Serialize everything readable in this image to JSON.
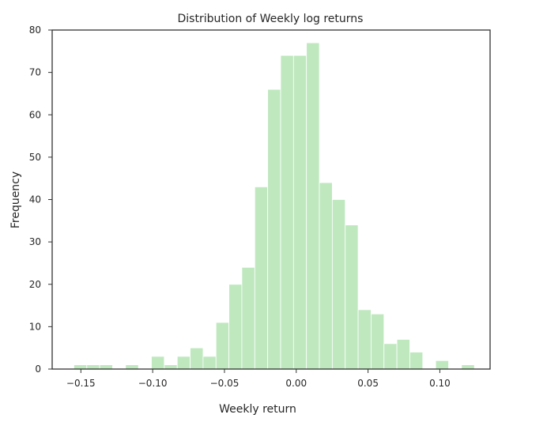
{
  "chart_data": {
    "type": "bar",
    "title": "Distribution of Weekly log returns",
    "xlabel": "Weekly return",
    "ylabel": "Frequency",
    "xlim": [
      -0.17,
      0.135
    ],
    "ylim": [
      0,
      80
    ],
    "grid": false,
    "legend": "none",
    "bar_color": "#bfe8bf",
    "bar_edge_color": "#ffffff",
    "axes_edge_color": "#333333",
    "text_color": "#262626",
    "x_ticks": [
      {
        "value": -0.15,
        "label": "−0.15"
      },
      {
        "value": -0.1,
        "label": "−0.10"
      },
      {
        "value": -0.05,
        "label": "−0.05"
      },
      {
        "value": 0.0,
        "label": "0.00"
      },
      {
        "value": 0.05,
        "label": "0.05"
      },
      {
        "value": 0.1,
        "label": "0.10"
      }
    ],
    "y_ticks": [
      {
        "value": 0,
        "label": "0"
      },
      {
        "value": 10,
        "label": "10"
      },
      {
        "value": 20,
        "label": "20"
      },
      {
        "value": 30,
        "label": "30"
      },
      {
        "value": 40,
        "label": "40"
      },
      {
        "value": 50,
        "label": "50"
      },
      {
        "value": 60,
        "label": "60"
      },
      {
        "value": 70,
        "label": "70"
      },
      {
        "value": 80,
        "label": "80"
      }
    ],
    "bins": [
      {
        "x0": -0.1549,
        "x1": -0.1459,
        "count": 1
      },
      {
        "x0": -0.1459,
        "x1": -0.1369,
        "count": 1
      },
      {
        "x0": -0.1369,
        "x1": -0.1279,
        "count": 1
      },
      {
        "x0": -0.1279,
        "x1": -0.1189,
        "count": 0
      },
      {
        "x0": -0.1189,
        "x1": -0.1099,
        "count": 1
      },
      {
        "x0": -0.1099,
        "x1": -0.1009,
        "count": 0
      },
      {
        "x0": -0.1009,
        "x1": -0.0919,
        "count": 3
      },
      {
        "x0": -0.0919,
        "x1": -0.0829,
        "count": 1
      },
      {
        "x0": -0.0829,
        "x1": -0.0739,
        "count": 3
      },
      {
        "x0": -0.0739,
        "x1": -0.0649,
        "count": 5
      },
      {
        "x0": -0.0649,
        "x1": -0.0559,
        "count": 3
      },
      {
        "x0": -0.0559,
        "x1": -0.0469,
        "count": 11
      },
      {
        "x0": -0.0469,
        "x1": -0.0379,
        "count": 20
      },
      {
        "x0": -0.0379,
        "x1": -0.0289,
        "count": 24
      },
      {
        "x0": -0.0289,
        "x1": -0.0199,
        "count": 43
      },
      {
        "x0": -0.0199,
        "x1": -0.0109,
        "count": 66
      },
      {
        "x0": -0.0109,
        "x1": -0.0019,
        "count": 74
      },
      {
        "x0": -0.0019,
        "x1": 0.0071,
        "count": 74
      },
      {
        "x0": 0.0071,
        "x1": 0.0161,
        "count": 77
      },
      {
        "x0": 0.0161,
        "x1": 0.0251,
        "count": 44
      },
      {
        "x0": 0.0251,
        "x1": 0.0341,
        "count": 40
      },
      {
        "x0": 0.0341,
        "x1": 0.0431,
        "count": 34
      },
      {
        "x0": 0.0431,
        "x1": 0.0521,
        "count": 14
      },
      {
        "x0": 0.0521,
        "x1": 0.0611,
        "count": 13
      },
      {
        "x0": 0.0611,
        "x1": 0.0701,
        "count": 6
      },
      {
        "x0": 0.0701,
        "x1": 0.0791,
        "count": 7
      },
      {
        "x0": 0.0791,
        "x1": 0.0881,
        "count": 4
      },
      {
        "x0": 0.0881,
        "x1": 0.0971,
        "count": 0
      },
      {
        "x0": 0.0971,
        "x1": 0.1061,
        "count": 2
      },
      {
        "x0": 0.1061,
        "x1": 0.1151,
        "count": 0
      },
      {
        "x0": 0.1151,
        "x1": 0.1241,
        "count": 1
      }
    ]
  }
}
